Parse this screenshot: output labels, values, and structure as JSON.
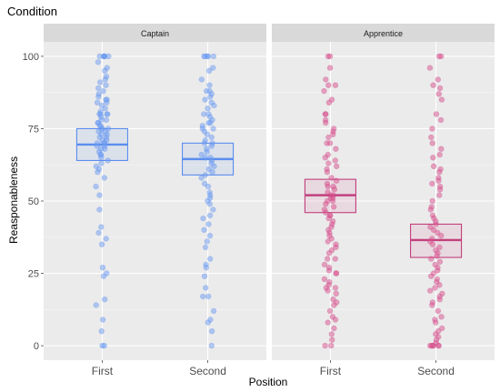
{
  "chart_data": {
    "type": "boxplot-jitter",
    "title": "Condition",
    "xlabel": "Position",
    "ylabel": "Reasponableness",
    "ylim": [
      -5,
      105
    ],
    "y_ticks": [
      0,
      25,
      50,
      75,
      100
    ],
    "categories": [
      "First",
      "Second"
    ],
    "facets": [
      {
        "name": "Captain",
        "color": "#6b9cf2",
        "box_color": "#5b8def",
        "groups": [
          {
            "category": "First",
            "q1": 64,
            "median": 69.5,
            "q3": 75,
            "points": [
              100,
              100,
              100,
              100,
              100,
              100,
              98,
              96,
              95,
              93,
              92,
              91,
              90,
              89,
              88,
              87,
              86,
              85,
              85,
              84,
              84,
              83,
              82,
              81,
              80,
              80,
              80,
              80,
              79,
              78,
              78,
              77,
              77,
              76,
              76,
              75,
              75,
              75,
              74,
              74,
              73,
              73,
              72,
              72,
              71,
              71,
              70,
              70,
              70,
              69,
              69,
              68,
              68,
              67,
              66,
              66,
              65,
              64,
              63,
              62,
              61,
              60,
              58,
              55,
              52,
              47,
              41,
              39,
              37,
              35,
              27,
              25,
              24,
              16,
              14,
              9,
              5,
              0,
              0
            ]
          },
          {
            "category": "Second",
            "q1": 59,
            "median": 64.5,
            "q3": 70,
            "points": [
              100,
              100,
              100,
              100,
              100,
              96,
              95,
              92,
              90,
              88,
              88,
              87,
              86,
              85,
              84,
              83,
              82,
              80,
              80,
              79,
              78,
              77,
              77,
              76,
              75,
              75,
              74,
              73,
              72,
              71,
              70,
              70,
              69,
              68,
              67,
              66,
              65,
              65,
              64,
              63,
              62,
              61,
              60,
              59,
              58,
              56,
              55,
              53,
              52,
              51,
              50,
              49,
              47,
              45,
              44,
              42,
              40,
              38,
              36,
              34,
              30,
              28,
              27,
              24,
              20,
              17,
              17,
              12,
              9,
              8,
              5,
              0
            ]
          }
        ]
      },
      {
        "name": "Apprentice",
        "color": "#d94f8e",
        "box_color": "#c2407d",
        "groups": [
          {
            "category": "First",
            "q1": 46,
            "median": 52,
            "q3": 57.5,
            "points": [
              100,
              100,
              96,
              92,
              90,
              90,
              88,
              85,
              84,
              80,
              80,
              78,
              77,
              75,
              74,
              73,
              72,
              70,
              70,
              68,
              66,
              65,
              64,
              63,
              62,
              61,
              60,
              58,
              57,
              56,
              55,
              55,
              54,
              53,
              52,
              52,
              51,
              51,
              50,
              50,
              49,
              48,
              47,
              46,
              45,
              45,
              44,
              43,
              42,
              41,
              40,
              39,
              38,
              37,
              36,
              35,
              34,
              33,
              32,
              30,
              30,
              28,
              27,
              26,
              25,
              25,
              23,
              22,
              21,
              20,
              20,
              19,
              18,
              16,
              15,
              14,
              12,
              10,
              9,
              8,
              6,
              4,
              2,
              0,
              0
            ]
          },
          {
            "category": "Second",
            "q1": 30.5,
            "median": 36.5,
            "q3": 42,
            "points": [
              100,
              100,
              96,
              92,
              90,
              89,
              87,
              85,
              80,
              78,
              75,
              72,
              70,
              68,
              66,
              65,
              62,
              61,
              60,
              58,
              57,
              56,
              55,
              54,
              52,
              50,
              48,
              47,
              45,
              44,
              43,
              42,
              41,
              40,
              39,
              38,
              37,
              36,
              35,
              34,
              33,
              32,
              31,
              30,
              29,
              28,
              27,
              26,
              25,
              24,
              23,
              22,
              21,
              20,
              19,
              18,
              17,
              16,
              15,
              14,
              12,
              10,
              9,
              8,
              6,
              5,
              4,
              3,
              2,
              1,
              0,
              0,
              0,
              0,
              0,
              0
            ]
          }
        ]
      }
    ]
  }
}
